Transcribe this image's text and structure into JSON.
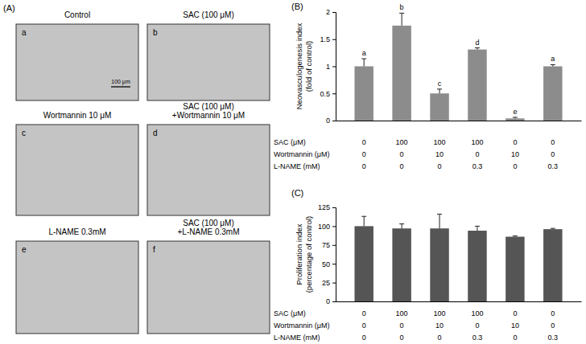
{
  "figure": {
    "label": "(A)",
    "images": [
      {
        "title": [
          "Control"
        ],
        "letter": "a",
        "scale_bar": "100 μm"
      },
      {
        "title": [
          "SAC (100 μM)"
        ],
        "letter": "b"
      },
      {
        "title": [
          "Wortmannin 10 μM"
        ],
        "letter": "c"
      },
      {
        "title": [
          "SAC (100 μM)",
          "+Wortmannin 10 μM"
        ],
        "letter": "d"
      },
      {
        "title": [
          "L-NAME 0.3mM"
        ],
        "letter": "e"
      },
      {
        "title": [
          "SAC (100 μM)",
          "+L-NAME 0.3mM"
        ],
        "letter": "f"
      }
    ]
  },
  "chart_data": [
    {
      "type": "bar",
      "title": "(B)",
      "ylabel": [
        "Neovasculogenesis index",
        "(fold of control)"
      ],
      "categories": [
        null,
        null,
        null,
        null,
        null,
        null
      ],
      "values": [
        1.0,
        1.75,
        0.5,
        1.31,
        0.04,
        1.0
      ],
      "errors": [
        0.14,
        0.23,
        0.08,
        0.03,
        0.02,
        0.03
      ],
      "letters": [
        "a",
        "b",
        "c",
        "d",
        "e",
        "a"
      ],
      "color": "#8c8c8c",
      "ylim": [
        0,
        2
      ],
      "yticks": [
        0,
        0.5,
        1,
        1.5,
        2
      ],
      "treatments": [
        {
          "label": "SAC (μM)",
          "values": [
            0,
            100,
            100,
            100,
            0,
            0
          ]
        },
        {
          "label": "Wortmannin (μM)",
          "values": [
            0,
            0,
            10,
            0,
            10,
            0
          ]
        },
        {
          "label": "L-NAME (mM)",
          "values": [
            0,
            0,
            0,
            0.3,
            0,
            0.3
          ]
        }
      ]
    },
    {
      "type": "bar",
      "title": "(C)",
      "ylabel": [
        "Proliferation index",
        "(percentage of control)"
      ],
      "categories": [
        null,
        null,
        null,
        null,
        null,
        null
      ],
      "values": [
        100,
        97,
        97,
        94,
        86,
        96
      ],
      "errors": [
        13,
        6,
        19,
        6,
        1,
        1
      ],
      "color": "#555555",
      "ylim": [
        0,
        125
      ],
      "yticks": [
        0,
        25,
        50,
        75,
        100,
        125
      ],
      "treatments": [
        {
          "label": "SAC (μM)",
          "values": [
            0,
            100,
            100,
            100,
            0,
            0
          ]
        },
        {
          "label": "Wortmannin (μM)",
          "values": [
            0,
            0,
            10,
            0,
            10,
            0
          ]
        },
        {
          "label": "L-NAME (mM)",
          "values": [
            0,
            0,
            0,
            0.3,
            0,
            0.3
          ]
        }
      ]
    }
  ]
}
